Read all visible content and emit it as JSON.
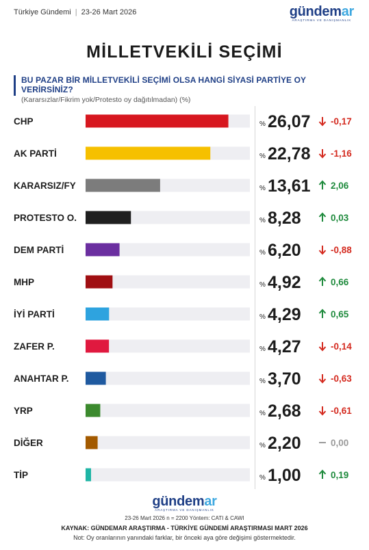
{
  "header": {
    "label": "Türkiye Gündemi",
    "date": "23-26 Mart 2026"
  },
  "brand": {
    "name_main": "gündem",
    "name_accent": "ar",
    "tagline": "ARAŞTIRMA VE DANIŞMANLIK",
    "color_primary": "#1f3f86",
    "color_accent": "#3ea8e0"
  },
  "title": "MİLLETVEKİLİ SEÇİMİ",
  "question": "BU PAZAR BİR MİLLETVEKİLİ SEÇİMİ OLSA HANGİ SİYASİ PARTİYE OY VERİRSİNİZ?",
  "question_note": "(Kararsızlar/Fikrim yok/Protesto oy dağıtılmadan) (%)",
  "chart_data": {
    "type": "bar",
    "orientation": "horizontal",
    "value_prefix": "%",
    "xlim": [
      0,
      30
    ],
    "rows": [
      {
        "label": "CHP",
        "value": 26.07,
        "value_text": "26,07",
        "change": -0.17,
        "change_text": "-0,17",
        "color": "#d7171f"
      },
      {
        "label": "AK PARTİ",
        "value": 22.78,
        "value_text": "22,78",
        "change": -1.16,
        "change_text": "-1,16",
        "color": "#f6c000"
      },
      {
        "label": "KARARSIZ/FY",
        "value": 13.61,
        "value_text": "13,61",
        "change": 2.06,
        "change_text": "2,06",
        "color": "#7c7c7c"
      },
      {
        "label": "PROTESTO O.",
        "value": 8.28,
        "value_text": "8,28",
        "change": 0.03,
        "change_text": "0,03",
        "color": "#1f1f1f"
      },
      {
        "label": "DEM PARTİ",
        "value": 6.2,
        "value_text": "6,20",
        "change": -0.88,
        "change_text": "-0,88",
        "color": "#6b2fa0"
      },
      {
        "label": "MHP",
        "value": 4.92,
        "value_text": "4,92",
        "change": 0.66,
        "change_text": "0,66",
        "color": "#a00f12"
      },
      {
        "label": "İYİ PARTİ",
        "value": 4.29,
        "value_text": "4,29",
        "change": 0.65,
        "change_text": "0,65",
        "color": "#2ea3df"
      },
      {
        "label": "ZAFER P.",
        "value": 4.27,
        "value_text": "4,27",
        "change": -0.14,
        "change_text": "-0,14",
        "color": "#e0193f"
      },
      {
        "label": "ANAHTAR P.",
        "value": 3.7,
        "value_text": "3,70",
        "change": -0.63,
        "change_text": "-0,63",
        "color": "#1f5aa0"
      },
      {
        "label": "YRP",
        "value": 2.68,
        "value_text": "2,68",
        "change": -0.61,
        "change_text": "-0,61",
        "color": "#3c8a2e"
      },
      {
        "label": "DİĞER",
        "value": 2.2,
        "value_text": "2,20",
        "change": 0.0,
        "change_text": "0,00",
        "color": "#a35a00"
      },
      {
        "label": "TİP",
        "value": 1.0,
        "value_text": "1,00",
        "change": 0.19,
        "change_text": "0,19",
        "color": "#1fb5a5"
      }
    ],
    "colors": {
      "up": "#1e8a3c",
      "down": "#d42a1f",
      "flat": "#9a9a9a",
      "track": "#eeeef2"
    }
  },
  "footer": {
    "method": "23-26 Mart 2026 n = 2200 Yöntem: CATI & CAWI",
    "source": "KAYNAK: GÜNDEMAR ARAŞTIRMA - TÜRKİYE GÜNDEMİ ARAŞTIRMASI MART 2026",
    "note": "Not: Oy oranlarının yanındaki farklar, bir önceki aya göre değişimi göstermektedir."
  }
}
